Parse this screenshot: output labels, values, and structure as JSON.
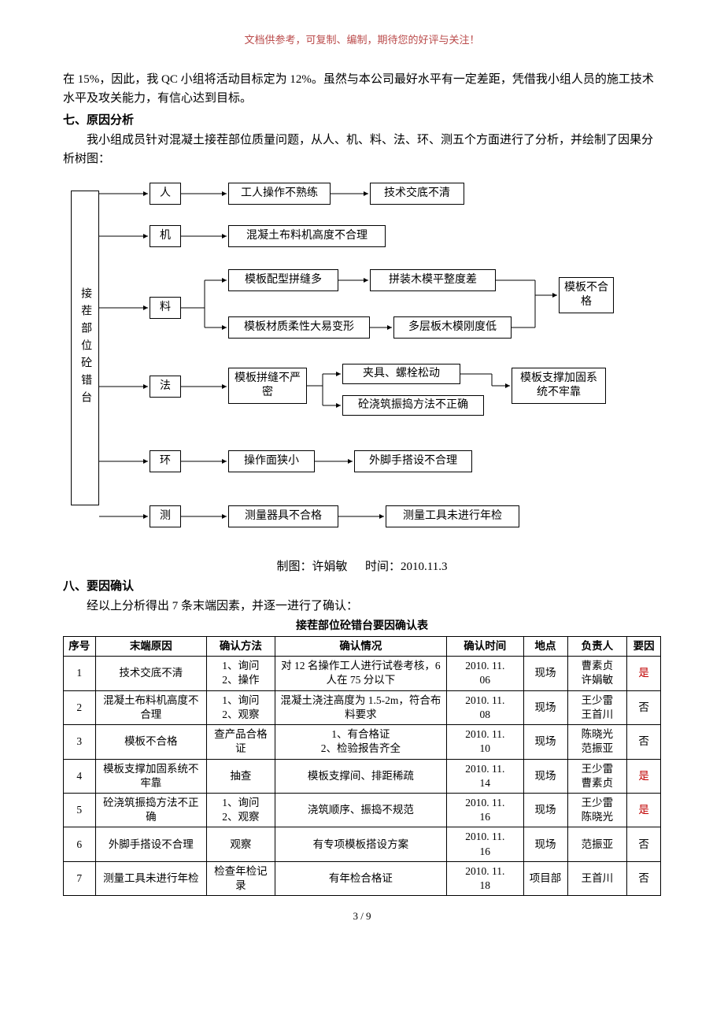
{
  "header_note": "文档供参考，可复制、编制，期待您的好评与关注！",
  "intro_para": "在 15%，因此，我 QC 小组将活动目标定为 12%。虽然与本公司最好水平有一定差距，凭借我小组人员的施工技术水平及攻关能力，有信心达到目标。",
  "section7_title": "七、原因分析",
  "section7_para": "我小组成员针对混凝土接茬部位质量问题，从人、机、料、法、环、测五个方面进行了分析，并绘制了因果分析树图：",
  "flow": {
    "root": "接茬部位砼错台",
    "cat": {
      "ren": "人",
      "ji": "机",
      "liao": "料",
      "fa": "法",
      "huan": "环",
      "ce": "测"
    },
    "ren1": "工人操作不熟练",
    "ren2": "技术交底不清",
    "ji1": "混凝土布料机高度不合理",
    "liao1": "模板配型拼缝多",
    "liao2": "拼装木模平整度差",
    "liao3": "模板材质柔性大易变形",
    "liao4": "多层板木模刚度低",
    "liao5": "模板不合格",
    "fa1": "模板拼缝不严密",
    "fa2": "夹具、螺栓松动",
    "fa3": "砼浇筑振捣方法不正确",
    "fa4": "模板支撑加固系统不牢靠",
    "huan1": "操作面狭小",
    "huan2": "外脚手搭设不合理",
    "ce1": "测量器具不合格",
    "ce2": "测量工具未进行年检"
  },
  "caption_author_label": "制图：",
  "caption_author": "许娟敏",
  "caption_time_label": "时间：",
  "caption_time": "2010.11.3",
  "section8_title": "八、要因确认",
  "section8_para": "经以上分析得出 7 条末端因素，并逐一进行了确认：",
  "table_title": "接茬部位砼错台要因确认表",
  "table": {
    "headers": {
      "seq": "序号",
      "cause": "末端原因",
      "method": "确认方法",
      "status": "确认情况",
      "time": "确认时间",
      "place": "地点",
      "owner": "负责人",
      "result": "要因"
    },
    "rows": [
      {
        "seq": "1",
        "cause": "技术交底不清",
        "method": "1、询问\n2、操作",
        "status": "对 12 名操作工人进行试卷考核，6 人在 75 分以下",
        "time": "2010. 11.\n06",
        "place": "现场",
        "owner": "曹素贞\n许娟敏",
        "result": "是",
        "result_color": "#c00000"
      },
      {
        "seq": "2",
        "cause": "混凝土布料机高度不合理",
        "method": "1、询问\n2、观察",
        "status": "混凝土浇注高度为 1.5-2m，符合布料要求",
        "time": "2010. 11.\n08",
        "place": "现场",
        "owner": "王少雷\n王首川",
        "result": "否",
        "result_color": "#000000"
      },
      {
        "seq": "3",
        "cause": "模板不合格",
        "method": "查产品合格证",
        "status": "1、有合格证\n2、检验报告齐全",
        "time": "2010. 11.\n10",
        "place": "现场",
        "owner": "陈晓光\n范振亚",
        "result": "否",
        "result_color": "#000000"
      },
      {
        "seq": "4",
        "cause": "模板支撑加固系统不牢靠",
        "method": "抽查",
        "status": "模板支撑间、排距稀疏",
        "time": "2010. 11.\n14",
        "place": "现场",
        "owner": "王少雷\n曹素贞",
        "result": "是",
        "result_color": "#c00000"
      },
      {
        "seq": "5",
        "cause": "砼浇筑振捣方法不正确",
        "method": "1、询问\n2、观察",
        "status": "浇筑顺序、振捣不规范",
        "time": "2010. 11.\n16",
        "place": "现场",
        "owner": "王少雷\n陈晓光",
        "result": "是",
        "result_color": "#c00000"
      },
      {
        "seq": "6",
        "cause": "外脚手搭设不合理",
        "method": "观察",
        "status": "有专项模板搭设方案",
        "time": "2010. 11.\n16",
        "place": "现场",
        "owner": "范振亚",
        "result": "否",
        "result_color": "#000000"
      },
      {
        "seq": "7",
        "cause": "测量工具未进行年检",
        "method": "检查年检记录",
        "status": "有年检合格证",
        "time": "2010. 11.\n18",
        "place": "项目部",
        "owner": "王首川",
        "result": "否",
        "result_color": "#000000"
      }
    ]
  },
  "page_number": "3 / 9",
  "colors": {
    "text": "#000000",
    "header": "#ba4a4a",
    "accent_red": "#c00000",
    "border": "#000000",
    "bg": "#ffffff"
  }
}
